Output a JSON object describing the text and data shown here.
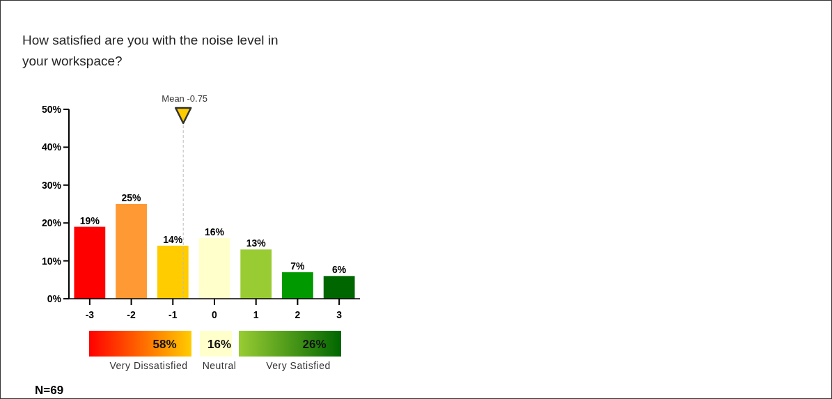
{
  "chart_data": [
    {
      "type": "bar",
      "title": "How satisfied are you with the noise level in your workspace?",
      "x": [
        -3,
        -2,
        -1,
        0,
        1,
        2,
        3
      ],
      "values": [
        19,
        25,
        14,
        16,
        13,
        7,
        6
      ],
      "colors": [
        "#ff0000",
        "#ff9933",
        "#ffcc00",
        "#ffffcc",
        "#99cc33",
        "#009900",
        "#006600"
      ],
      "value_labels": [
        "19%",
        "25%",
        "14%",
        "16%",
        "13%",
        "7%",
        "6%"
      ],
      "xlim": [
        -3.5,
        3.5
      ],
      "xticks": [
        -3,
        -2,
        -1,
        0,
        1,
        2,
        3
      ],
      "ylim": [
        0,
        50
      ],
      "yticks": [
        {
          "value": 0,
          "label": "0%"
        },
        {
          "value": 10,
          "label": "10%"
        },
        {
          "value": 20,
          "label": "20%"
        },
        {
          "value": 30,
          "label": "30%"
        },
        {
          "value": 40,
          "label": "40%"
        },
        {
          "value": 50,
          "label": "50%"
        }
      ],
      "ref_lines": [
        {
          "axis": "x",
          "value": -0.75,
          "label": "Mean -0.75",
          "color": "#bbbbbb",
          "line_style": "dashed"
        }
      ],
      "grid": false
    },
    {
      "type": "other",
      "categories": [
        "Very Dissatisfied",
        "Neutral",
        "Very Satisfied"
      ],
      "values": [
        58,
        16,
        26
      ],
      "value_labels": [
        "58%",
        "16%",
        "26%"
      ],
      "colors": [
        "#ffcc00",
        "#ffffcc",
        "#006600"
      ],
      "annotations": [
        "N=69"
      ]
    }
  ]
}
